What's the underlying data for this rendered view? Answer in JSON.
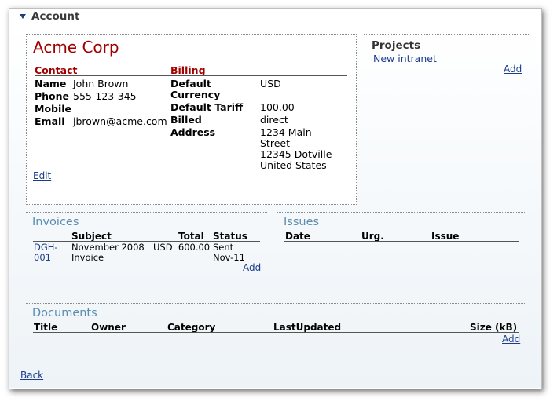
{
  "section": {
    "title": "Account"
  },
  "client": {
    "company": "Acme Corp",
    "contact_heading": "Contact",
    "billing_heading": "Billing",
    "contact": {
      "name_label": "Name",
      "name": "John Brown",
      "phone_label": "Phone",
      "phone": "555-123-345",
      "mobile_label": "Mobile",
      "mobile": "",
      "email_label": "Email",
      "email": "jbrown@acme.com"
    },
    "billing": {
      "currency_label_1": "Default",
      "currency_label_2": "Currency",
      "currency": "USD",
      "tariff_label": "Default Tariff",
      "tariff": "100.00",
      "billed_label": "Billed",
      "billed": "direct",
      "address_label": "Address",
      "address_lines": [
        "1234 Main",
        "Street",
        "12345 Dotville",
        "United States"
      ]
    },
    "edit_link": "Edit"
  },
  "projects": {
    "title": "Projects",
    "items": [
      "New intranet"
    ],
    "add_link": "Add"
  },
  "invoices": {
    "title": "Invoices",
    "headers": [
      "Subject",
      "Total",
      "Status"
    ],
    "rows": [
      {
        "id_line1": "DGH-",
        "id_line2": "001",
        "subject_line1": "November 2008",
        "subject_line2": "Invoice",
        "total": "USD  600.00",
        "status_line1": "Sent",
        "status_line2": "Nov-11"
      }
    ],
    "add_link": "Add"
  },
  "issues": {
    "title": "Issues",
    "headers": [
      "Date",
      "Urg.",
      "Issue"
    ]
  },
  "documents": {
    "title": "Documents",
    "headers": [
      "Title",
      "Owner",
      "Category",
      "LastUpdated",
      "Size (kB)"
    ],
    "add_link": "Add"
  },
  "footer": {
    "back_link": "Back"
  },
  "colors": {
    "accent_red": "#a00000",
    "link_blue": "#1d3d8c",
    "group_title": "#5b8db3"
  },
  "icons": {
    "collapse": "triangle-down-icon"
  }
}
